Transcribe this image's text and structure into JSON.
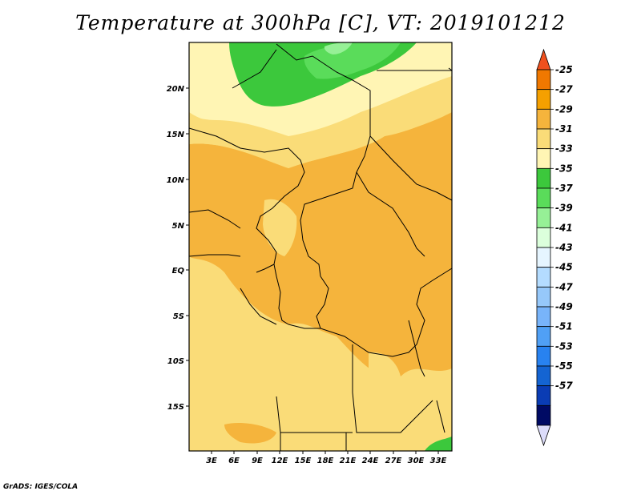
{
  "title": "Temperature at 300hPa [C], VT: 2019101212",
  "credit": "GrADS: IGES/COLA",
  "lat_labels": [
    "20N",
    "15N",
    "10N",
    "5N",
    "EQ",
    "5S",
    "10S",
    "15S"
  ],
  "lon_labels": [
    "3E",
    "6E",
    "9E",
    "12E",
    "15E",
    "18E",
    "21E",
    "24E",
    "27E",
    "30E",
    "33E"
  ],
  "colorbar": {
    "labels": [
      "-25",
      "-27",
      "-29",
      "-31",
      "-33",
      "-35",
      "-37",
      "-39",
      "-41",
      "-43",
      "-45",
      "-47",
      "-49",
      "-51",
      "-53",
      "-55",
      "-57"
    ],
    "colors": [
      "#f0501e",
      "#f07800",
      "#f5a000",
      "#f5b43c",
      "#fadc78",
      "#fff5b4",
      "#3cc83c",
      "#5adc5a",
      "#96f096",
      "#dcffdc",
      "#e6f5ff",
      "#b4dcff",
      "#96c8fa",
      "#78b4fa",
      "#50a0f5",
      "#2882f0",
      "#1464d2",
      "#0a3cb4",
      "#000a64",
      "#dcdcfa"
    ]
  }
}
